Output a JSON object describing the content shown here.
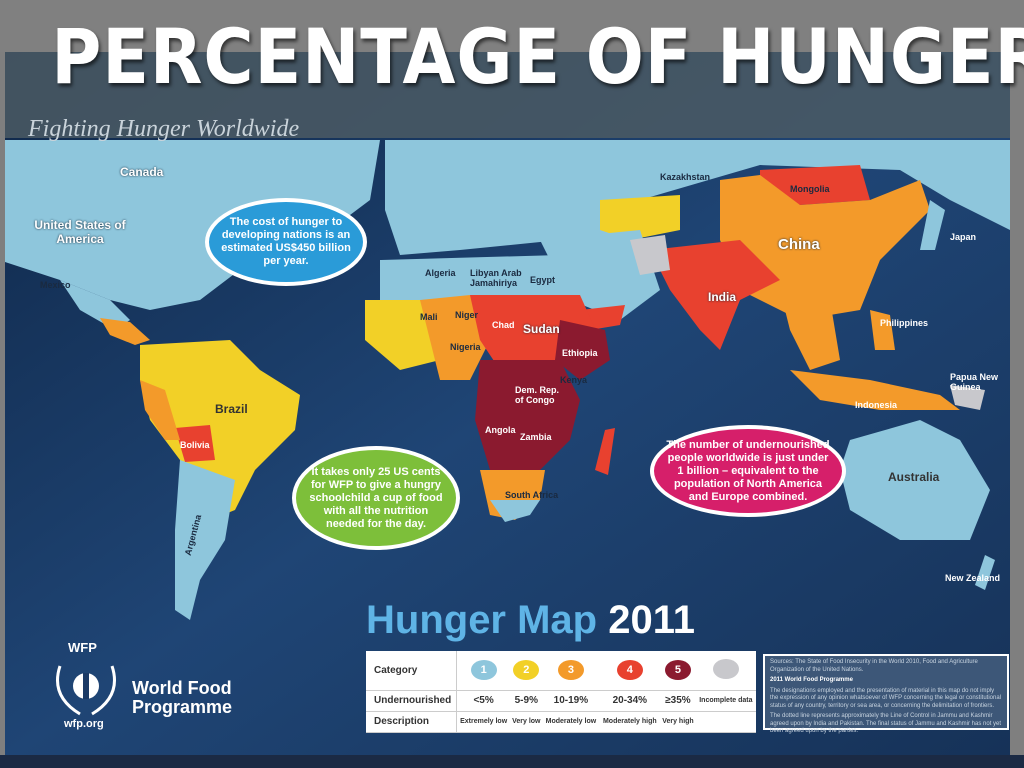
{
  "slide_title": "PERCENTAGE OF HUNGER",
  "map_subtitle": "Fighting Hunger Worldwide",
  "map_title": {
    "text": "Hunger Map",
    "year": "2011"
  },
  "colors": {
    "ocean": "#1d3a66",
    "cat1": "#8ec6dc",
    "cat2": "#f2d027",
    "cat3": "#f39a2a",
    "cat4": "#e8412f",
    "cat5": "#8b1a2f",
    "incomplete": "#c8c8cc"
  },
  "country_labels": [
    "Canada",
    "United States of America",
    "Mexico",
    "Brazil",
    "Bolivia",
    "Argentina",
    "Algeria",
    "Libyan Arab Jamahiriya",
    "Egypt",
    "Mali",
    "Niger",
    "Chad",
    "Sudan",
    "Ethiopia",
    "Nigeria",
    "Dem. Rep. of Congo",
    "Angola",
    "Zambia",
    "Kenya",
    "South Africa",
    "Kazakhstan",
    "Mongolia",
    "China",
    "India",
    "Japan",
    "Indonesia",
    "Australia",
    "New Zealand",
    "Philippines",
    "Papua New Guinea"
  ],
  "bubbles": [
    {
      "text": "The cost of hunger to developing nations is an estimated US$450 billion per year.",
      "color": "#2a9bd8"
    },
    {
      "text": "It takes only 25 US cents for WFP to give a hungry schoolchild a cup of food with all the nutrition needed for the day.",
      "color": "#7dbf3a"
    },
    {
      "text": "The number of undernourished people worldwide is just under 1 billion – equivalent to the population of North America and Europe combined.",
      "color": "#d61f6a"
    }
  ],
  "legend": {
    "row_labels": [
      "Category",
      "Undernourished",
      "Description"
    ],
    "categories": [
      {
        "num": "1",
        "range": "<5%",
        "desc": "Extremely low",
        "color": "#8ec6dc"
      },
      {
        "num": "2",
        "range": "5-9%",
        "desc": "Very low",
        "color": "#f2d027"
      },
      {
        "num": "3",
        "range": "10-19%",
        "desc": "Moderately low",
        "color": "#f39a2a"
      },
      {
        "num": "4",
        "range": "20-34%",
        "desc": "Moderately high",
        "color": "#e8412f"
      },
      {
        "num": "5",
        "range": "≥35%",
        "desc": "Very high",
        "color": "#8b1a2f"
      },
      {
        "num": "",
        "range": "Incomplete data",
        "desc": "",
        "color": "#c8c8cc"
      }
    ]
  },
  "sources": {
    "line1": "Sources: The State of Food Insecurity in the World 2010, Food and Agriculture Organization of the United Nations.",
    "line2": "2011 World Food Programme",
    "line3": "The designations employed and the presentation of material in this map do not imply the expression of any opinion whatsoever of WFP concerning the legal or constitutional status of any country, territory or sea area, or concerning the delimitation of frontiers.",
    "line4": "The dotted line represents approximately the Line of Control in Jammu and Kashmir agreed upon by India and Pakistan. The final status of Jammu and Kashmir has not yet been agreed upon by the parties."
  },
  "logo": {
    "acronym": "WFP",
    "name_line1": "World Food",
    "name_line2": "Programme",
    "url": "wfp.org"
  }
}
